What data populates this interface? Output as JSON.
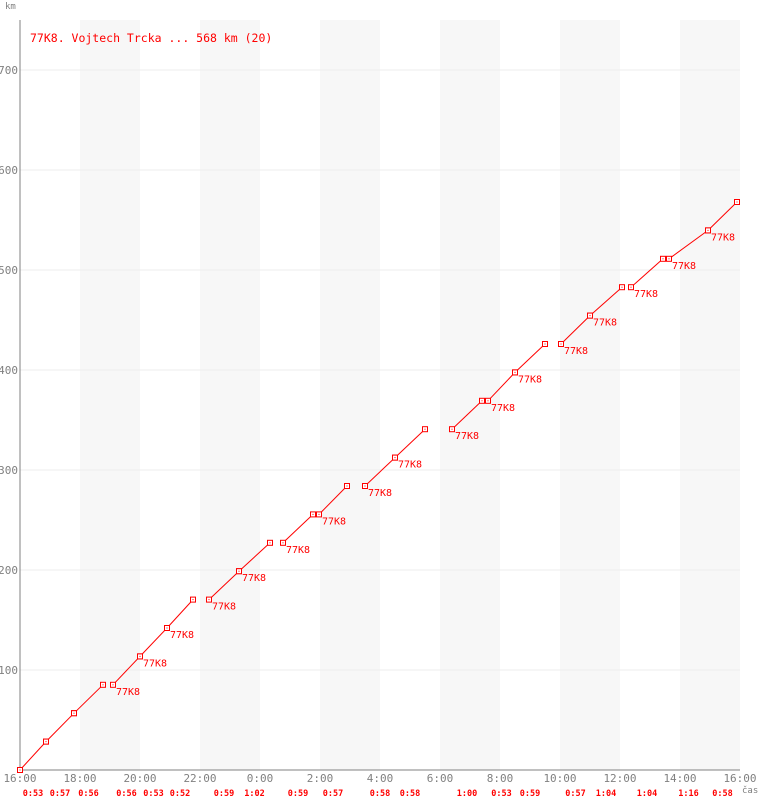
{
  "chart_data": {
    "type": "line",
    "title": "",
    "legend": "77K8. Vojtech Trcka ... 568 km (20)",
    "legend_placement": "top-left",
    "xlabel": "čas",
    "ylabel": "km",
    "xlim": [
      "16:00",
      "16:00 (+1 day)"
    ],
    "ylim": [
      0,
      750
    ],
    "x_ticks": [
      "16:00",
      "18:00",
      "20:00",
      "22:00",
      "0:00",
      "2:00",
      "4:00",
      "6:00",
      "8:00",
      "10:00",
      "12:00",
      "14:00",
      "16:00"
    ],
    "y_ticks": [
      100,
      200,
      300,
      400,
      500,
      600,
      700
    ],
    "grid": true,
    "shaded_bands": "alternating 2-hour columns",
    "color": "#ff0000",
    "point_label": "77K8",
    "laps": [
      {
        "start": "16:00",
        "end": "16:52",
        "km_start": 0,
        "km_end": 28.4,
        "lap_time": "0:53",
        "label": false
      },
      {
        "start": "16:52",
        "end": "17:48",
        "km_start": 28.4,
        "km_end": 56.8,
        "lap_time": "0:57",
        "label": false
      },
      {
        "start": "17:48",
        "end": "18:46",
        "km_start": 56.8,
        "km_end": 85.2,
        "lap_time": "0:56",
        "label": false
      },
      {
        "start": "19:06",
        "end": "20:00",
        "km_start": 85.2,
        "km_end": 113.6,
        "lap_time": "0:56",
        "label": true
      },
      {
        "start": "20:00",
        "end": "20:54",
        "km_start": 113.6,
        "km_end": 142,
        "lap_time": "0:53",
        "label": true
      },
      {
        "start": "20:54",
        "end": "21:46",
        "km_start": 142,
        "km_end": 170.4,
        "lap_time": "0:52",
        "label": true
      },
      {
        "start": "22:18",
        "end": "23:18",
        "km_start": 170.4,
        "km_end": 198.8,
        "lap_time": "0:59",
        "label": true
      },
      {
        "start": "23:18",
        "end": "0:20",
        "km_start": 198.8,
        "km_end": 227.2,
        "lap_time": "1:02",
        "label": true
      },
      {
        "start": "0:46",
        "end": "1:46",
        "km_start": 227.2,
        "km_end": 255.6,
        "lap_time": "0:59",
        "label": true
      },
      {
        "start": "1:58",
        "end": "2:54",
        "km_start": 255.6,
        "km_end": 284,
        "lap_time": "0:57",
        "label": true
      },
      {
        "start": "3:30",
        "end": "4:30",
        "km_start": 284,
        "km_end": 312.4,
        "lap_time": "0:58",
        "label": true
      },
      {
        "start": "4:30",
        "end": "5:30",
        "km_start": 312.4,
        "km_end": 340.8,
        "lap_time": "0:58",
        "label": true
      },
      {
        "start": "6:24",
        "end": "7:24",
        "km_start": 340.8,
        "km_end": 369.2,
        "lap_time": "1:00",
        "label": true
      },
      {
        "start": "7:36",
        "end": "8:30",
        "km_start": 369.2,
        "km_end": 397.6,
        "lap_time": "0:53",
        "label": true
      },
      {
        "start": "8:30",
        "end": "9:30",
        "km_start": 397.6,
        "km_end": 426,
        "lap_time": "0:59",
        "label": true
      },
      {
        "start": "10:02",
        "end": "11:00",
        "km_start": 426,
        "km_end": 454.4,
        "lap_time": "0:57",
        "label": true
      },
      {
        "start": "11:00",
        "end": "12:04",
        "km_start": 454.4,
        "km_end": 482.8,
        "lap_time": "1:04",
        "label": true
      },
      {
        "start": "12:22",
        "end": "13:26",
        "km_start": 482.8,
        "km_end": 511.2,
        "lap_time": "1:04",
        "label": true
      },
      {
        "start": "13:38",
        "end": "14:56",
        "km_start": 511.2,
        "km_end": 539.6,
        "lap_time": "1:16",
        "label": true
      },
      {
        "start": "14:56",
        "end": "15:54",
        "km_start": 539.6,
        "km_end": 568,
        "lap_time": "0:58",
        "label": true
      }
    ]
  }
}
